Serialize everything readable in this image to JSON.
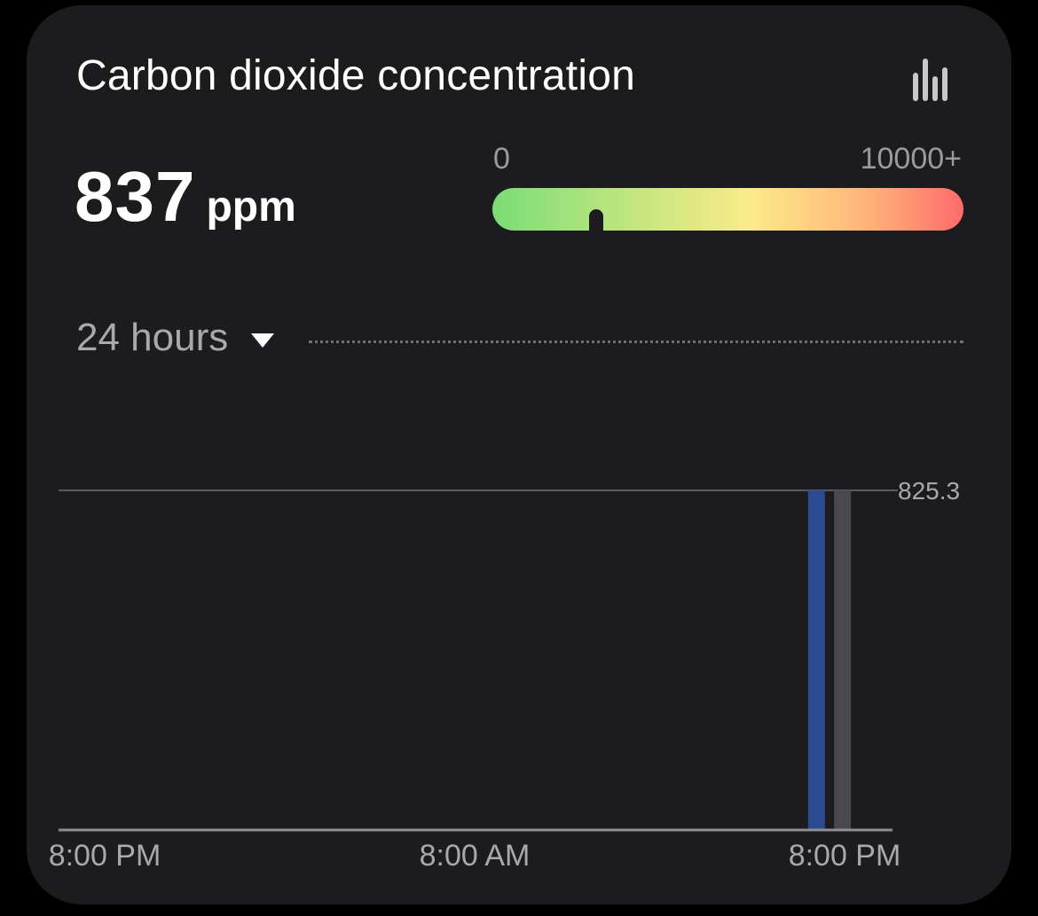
{
  "card": {
    "title": "Carbon dioxide concentration",
    "icon": "bar-chart-icon"
  },
  "reading": {
    "value": "837",
    "unit": "ppm"
  },
  "gauge": {
    "min_label": "0",
    "max_label": "10000+",
    "min_value": 0,
    "max_value": 10000,
    "current_value": 837,
    "marker_fraction": 0.22,
    "colors": [
      "#7bdc77",
      "#c3e67f",
      "#fbea8a",
      "#ffb27a",
      "#ff6b6b"
    ]
  },
  "range": {
    "selected": "24 hours",
    "icon": "triangle-down-icon"
  },
  "chart_data": {
    "type": "bar",
    "x_tick_labels": [
      "8:00 PM",
      "8:00 AM",
      "8:00 PM"
    ],
    "reference_line": {
      "value": 825.3,
      "label": "825.3"
    },
    "ylim": [
      0,
      825.3
    ],
    "xlim": [
      0,
      24
    ],
    "bars": [
      {
        "x": 23.3,
        "value": 825.3,
        "color": "#294b93"
      },
      {
        "x": 24.1,
        "value": 825.3,
        "color": "#4a4a4c"
      }
    ],
    "grid": false,
    "legend": "none"
  },
  "colors": {
    "background": "#000000",
    "card": "#1c1c1e",
    "text_primary": "#ffffff",
    "text_secondary": "#a8a8ad",
    "axis": "#8e8e93"
  }
}
